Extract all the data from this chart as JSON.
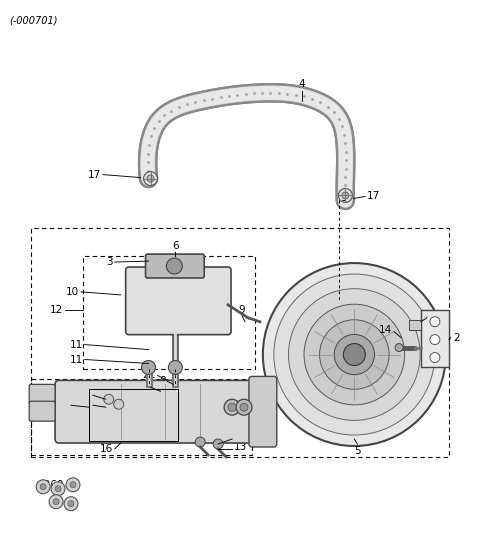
{
  "title": "(-000701)",
  "bg": "#ffffff",
  "fig_width": 4.8,
  "fig_height": 5.48,
  "dpi": 100,
  "dark": "#333333",
  "mid": "#666666",
  "light": "#aaaaaa",
  "lighter": "#cccccc",
  "white": "#ffffff"
}
